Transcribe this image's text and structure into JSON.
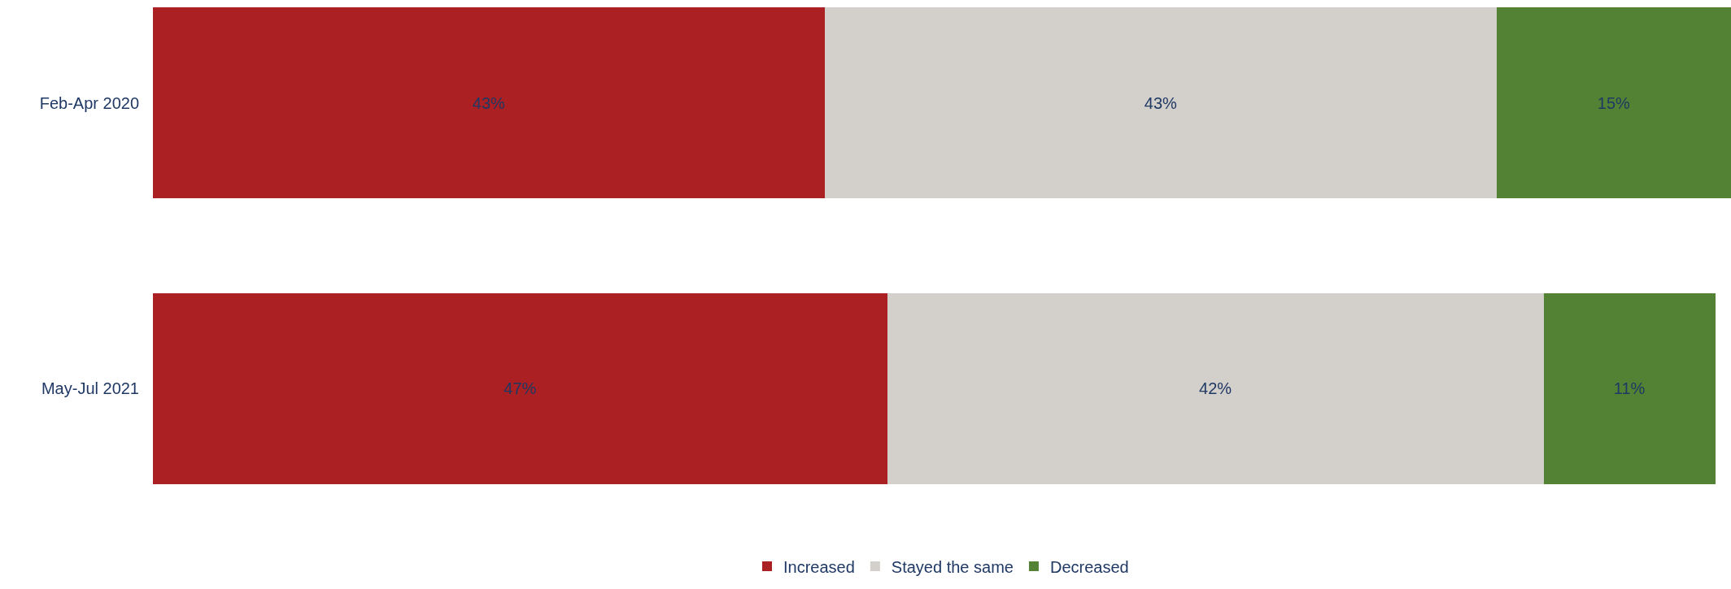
{
  "chart_data": {
    "type": "bar",
    "orientation": "horizontal",
    "stacked": true,
    "categories": [
      "Feb-Apr 2020",
      "May-Jul 2021"
    ],
    "series": [
      {
        "name": "Increased",
        "color": "#ab2022",
        "values": [
          43,
          47
        ],
        "value_labels": [
          "43%",
          "47%"
        ]
      },
      {
        "name": "Stayed the same",
        "color": "#d3d0cb",
        "values": [
          43,
          42
        ],
        "value_labels": [
          "43%",
          "42%"
        ]
      },
      {
        "name": "Decreased",
        "color": "#548235",
        "values": [
          15,
          11
        ],
        "value_labels": [
          "15%",
          "11%"
        ]
      }
    ],
    "legend": "bottom"
  }
}
